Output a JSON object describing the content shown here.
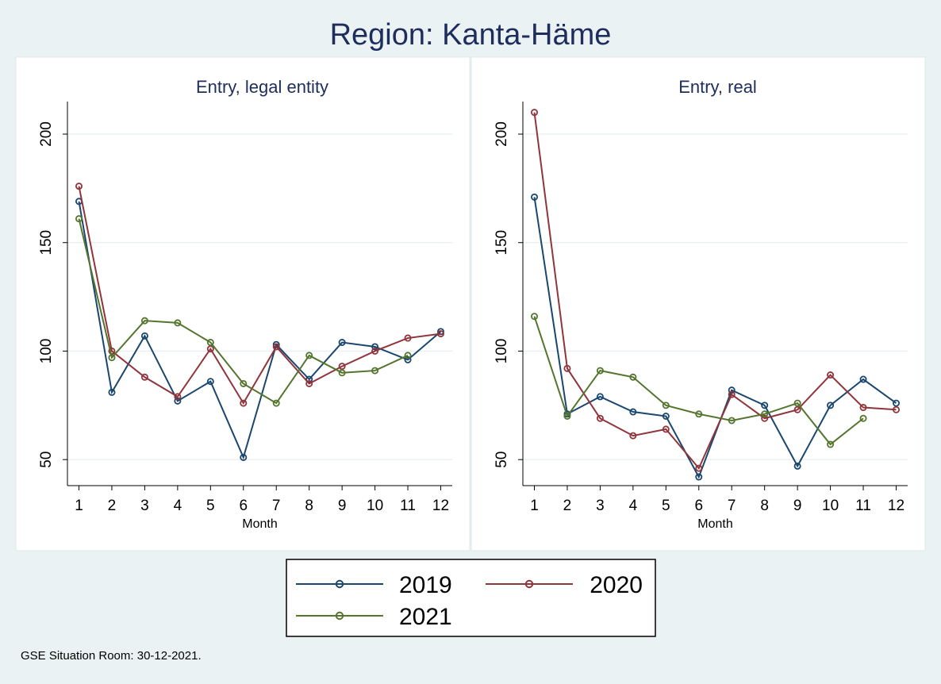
{
  "figure": {
    "title": "Region: Kanta-Häme",
    "footnote": "GSE Situation Room: 30-12-2021."
  },
  "colors": {
    "series_2019": "#1a476f",
    "series_2020": "#90353b",
    "series_2021": "#55752f",
    "background": "#eaf2f3",
    "plot_background": "#ffffff",
    "title": "#1e2d5c"
  },
  "legend": {
    "placement": "bottom-center",
    "entries": [
      "2019",
      "2020",
      "2021"
    ]
  },
  "chart_data": [
    {
      "type": "line",
      "title": "Entry, legal entity",
      "xlabel": "Month",
      "ylabel": "",
      "x": [
        1,
        2,
        3,
        4,
        5,
        6,
        7,
        8,
        9,
        10,
        11,
        12
      ],
      "xlim": [
        0.65,
        12.35
      ],
      "ylim": [
        38,
        215
      ],
      "yticks": [
        50,
        100,
        150,
        200
      ],
      "grid": true,
      "series": [
        {
          "name": "2019",
          "values": [
            169,
            81,
            107,
            77,
            86,
            51,
            103,
            87,
            104,
            102,
            96,
            109
          ]
        },
        {
          "name": "2020",
          "values": [
            176,
            100,
            88,
            79,
            101,
            76,
            102,
            85,
            93,
            100,
            106,
            108
          ]
        },
        {
          "name": "2021",
          "values": [
            161,
            97,
            114,
            113,
            104,
            85,
            76,
            98,
            90,
            91,
            98,
            null
          ]
        }
      ]
    },
    {
      "type": "line",
      "title": "Entry, real",
      "xlabel": "Month",
      "ylabel": "",
      "x": [
        1,
        2,
        3,
        4,
        5,
        6,
        7,
        8,
        9,
        10,
        11,
        12
      ],
      "xlim": [
        0.65,
        12.35
      ],
      "ylim": [
        38,
        215
      ],
      "yticks": [
        50,
        100,
        150,
        200
      ],
      "grid": true,
      "series": [
        {
          "name": "2019",
          "values": [
            171,
            71,
            79,
            72,
            70,
            42,
            82,
            75,
            47,
            75,
            87,
            76
          ]
        },
        {
          "name": "2020",
          "values": [
            210,
            92,
            69,
            61,
            64,
            46,
            80,
            69,
            73,
            89,
            74,
            73
          ]
        },
        {
          "name": "2021",
          "values": [
            116,
            70,
            91,
            88,
            75,
            71,
            68,
            71,
            76,
            57,
            69,
            null
          ]
        }
      ]
    }
  ]
}
